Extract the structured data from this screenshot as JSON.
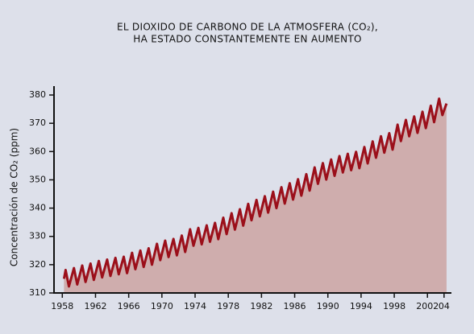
{
  "chart_data": {
    "type": "area-line",
    "title": "EL DIOXIDO DE CARBONO DE LA ATMOSFERA (CO₂),",
    "subtitle": "HA ESTADO CONSTANTEMENTE EN AUMENTO",
    "y_label": "Concentración de CO₂ (ppm)",
    "x": [
      1958.2,
      1958.4,
      1958.8,
      1959.4,
      1959.8,
      1960.4,
      1960.8,
      1961.4,
      1961.8,
      1962.4,
      1962.8,
      1963.4,
      1963.8,
      1964.4,
      1964.8,
      1965.4,
      1965.8,
      1966.4,
      1966.8,
      1967.4,
      1967.8,
      1968.4,
      1968.8,
      1969.4,
      1969.8,
      1970.4,
      1970.8,
      1971.4,
      1971.8,
      1972.4,
      1972.8,
      1973.4,
      1973.8,
      1974.4,
      1974.8,
      1975.4,
      1975.8,
      1976.4,
      1976.8,
      1977.4,
      1977.8,
      1978.4,
      1978.8,
      1979.4,
      1979.8,
      1980.4,
      1980.8,
      1981.4,
      1981.8,
      1982.4,
      1982.8,
      1983.4,
      1983.8,
      1984.4,
      1984.8,
      1985.4,
      1985.8,
      1986.4,
      1986.8,
      1987.4,
      1987.8,
      1988.4,
      1988.8,
      1989.4,
      1989.8,
      1990.4,
      1990.8,
      1991.4,
      1991.8,
      1992.4,
      1992.8,
      1993.4,
      1993.8,
      1994.4,
      1994.8,
      1995.4,
      1995.8,
      1996.4,
      1996.8,
      1997.4,
      1997.8,
      1998.4,
      1998.8,
      1999.4,
      1999.8,
      2000.4,
      2000.8,
      2001.4,
      2001.8,
      2002.4,
      2002.8,
      2003.4,
      2003.8,
      2004.3
    ],
    "values": [
      315.0,
      318.1,
      312.3,
      318.8,
      313.0,
      319.7,
      313.9,
      320.4,
      314.6,
      321.3,
      315.5,
      321.8,
      316.0,
      322.4,
      316.6,
      322.8,
      317.0,
      324.2,
      318.4,
      325.0,
      319.2,
      325.8,
      320.0,
      327.4,
      321.6,
      328.5,
      322.7,
      329.1,
      323.3,
      330.3,
      324.5,
      332.5,
      326.7,
      333.0,
      327.2,
      333.9,
      328.1,
      334.8,
      329.0,
      336.6,
      330.8,
      338.2,
      332.4,
      339.6,
      333.8,
      341.5,
      335.7,
      342.9,
      337.1,
      344.2,
      338.4,
      345.8,
      340.0,
      347.4,
      341.6,
      348.8,
      343.0,
      350.2,
      344.4,
      352.0,
      346.2,
      354.4,
      348.6,
      355.9,
      350.1,
      357.2,
      351.4,
      358.4,
      352.6,
      359.2,
      353.4,
      359.9,
      354.1,
      361.6,
      355.8,
      363.6,
      357.8,
      365.4,
      359.6,
      366.5,
      360.7,
      369.5,
      363.7,
      371.2,
      365.4,
      372.4,
      366.6,
      374.1,
      368.3,
      376.2,
      370.4,
      378.7,
      372.9,
      377.0
    ],
    "line_color": "#9b0f1a",
    "area_color": "#cfadad",
    "xlim": [
      1957,
      2004.5
    ],
    "xticks": [
      1958,
      1962,
      1966,
      1970,
      1974,
      1978,
      1982,
      1986,
      1990,
      1994,
      1998,
      2002,
      {
        "value": 2004,
        "label": "04"
      }
    ],
    "ylim": [
      310,
      383
    ],
    "yticks": [
      310,
      320,
      330,
      340,
      350,
      360,
      370,
      380
    ]
  }
}
